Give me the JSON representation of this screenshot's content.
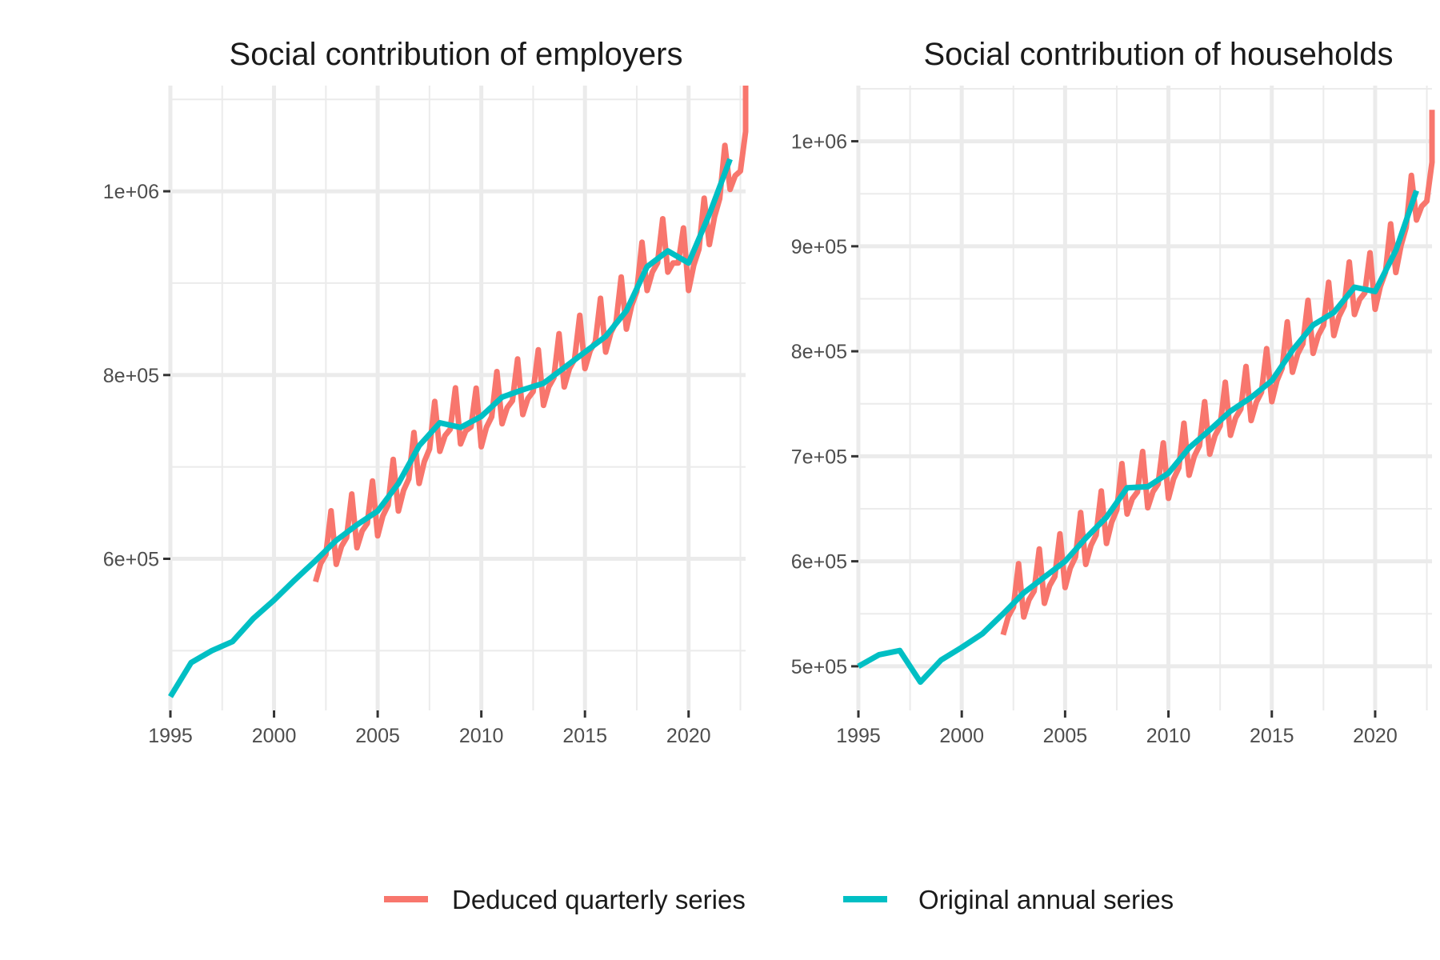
{
  "chart_data": [
    {
      "type": "line",
      "title": "Social contribution of employers",
      "xlabel": "",
      "ylabel": "",
      "xlim": [
        1995,
        2022.75
      ],
      "ylim": [
        435000,
        1115000
      ],
      "x_ticks": [
        1995,
        2000,
        2005,
        2010,
        2015,
        2020
      ],
      "x_tick_labels": [
        "1995",
        "2000",
        "2005",
        "2010",
        "2015",
        "2020"
      ],
      "y_ticks": [
        600000,
        800000,
        1000000
      ],
      "y_tick_labels": [
        "6e+05",
        "8e+05",
        "1e+06"
      ],
      "y_minor_ticks": [
        500000,
        700000,
        900000,
        1100000
      ],
      "grid": true,
      "series": [
        {
          "name": "Deduced quarterly series",
          "color": "#F8766D",
          "annual_base": {
            "x": [
              2002,
              2003,
              2004,
              2005,
              2006,
              2007,
              2008,
              2009,
              2010,
              2011,
              2012,
              2013,
              2014,
              2015,
              2016,
              2017,
              2018,
              2019,
              2020,
              2021,
              2022
            ],
            "values": [
              598000,
              617000,
              635000,
              648000,
              675000,
              705000,
              740000,
              748000,
              745000,
              770000,
              780000,
              790000,
              810000,
              830000,
              848000,
              873000,
              915000,
              935000,
              915000,
              965000,
              1025000
            ]
          },
          "quarter_offsets": [
            -23000,
            -8000,
            -3000,
            40000
          ],
          "extra_points": [
            [
              2022.75,
              1115000
            ]
          ]
        },
        {
          "name": "Original annual series",
          "color": "#00BFC4",
          "x": [
            1995,
            1996,
            1997,
            1998,
            1999,
            2000,
            2001,
            2002,
            2003,
            2004,
            2005,
            2006,
            2007,
            2008,
            2009,
            2010,
            2011,
            2012,
            2013,
            2014,
            2015,
            2016,
            2017,
            2018,
            2019,
            2020,
            2021,
            2022
          ],
          "values": [
            450000,
            487000,
            500000,
            510000,
            535000,
            555000,
            577000,
            598000,
            620000,
            637000,
            652000,
            682000,
            723000,
            748000,
            743000,
            755000,
            776000,
            784000,
            791000,
            808000,
            825000,
            842000,
            870000,
            918000,
            935000,
            922000,
            975000,
            1035000
          ]
        }
      ]
    },
    {
      "type": "line",
      "title": "Social contribution of households",
      "xlabel": "",
      "ylabel": "",
      "xlim": [
        1995,
        2022.75
      ],
      "ylim": [
        458000,
        1053000
      ],
      "x_ticks": [
        1995,
        2000,
        2005,
        2010,
        2015,
        2020
      ],
      "x_tick_labels": [
        "1995",
        "2000",
        "2005",
        "2010",
        "2015",
        "2020"
      ],
      "y_ticks": [
        500000,
        600000,
        700000,
        800000,
        900000,
        1000000
      ],
      "y_tick_labels": [
        "5e+05",
        "6e+05",
        "7e+05",
        "8e+05",
        "9e+05",
        "1e+06"
      ],
      "y_minor_ticks": [
        550000,
        650000,
        750000,
        850000,
        950000,
        1050000
      ],
      "grid": true,
      "series": [
        {
          "name": "Deduced quarterly series",
          "color": "#F8766D",
          "annual_base": {
            "x": [
              2002,
              2003,
              2004,
              2005,
              2006,
              2007,
              2008,
              2009,
              2010,
              2011,
              2012,
              2013,
              2014,
              2015,
              2016,
              2017,
              2018,
              2019,
              2020,
              2021,
              2022
            ],
            "values": [
              550000,
              567000,
              580000,
              595000,
              617000,
              637000,
              665000,
              671000,
              680000,
              702000,
              722000,
              740000,
              754000,
              772000,
              800000,
              818000,
              835000,
              855000,
              860000,
              895000,
              945000
            ]
          },
          "quarter_offsets": [
            -20000,
            -7000,
            -2000,
            35000
          ],
          "extra_points": [
            [
              2022.75,
              1030000
            ]
          ]
        },
        {
          "name": "Original annual series",
          "color": "#00BFC4",
          "x": [
            1995,
            1996,
            1997,
            1998,
            1999,
            2000,
            2001,
            2002,
            2003,
            2004,
            2005,
            2006,
            2007,
            2008,
            2009,
            2010,
            2011,
            2012,
            2013,
            2014,
            2015,
            2016,
            2017,
            2018,
            2019,
            2020,
            2021,
            2022
          ],
          "values": [
            500000,
            511000,
            515000,
            485000,
            506000,
            518000,
            531000,
            550000,
            570000,
            585000,
            600000,
            622000,
            642000,
            670000,
            671000,
            684000,
            708000,
            725000,
            743000,
            756000,
            772000,
            801000,
            825000,
            837000,
            861000,
            857000,
            896000,
            953000
          ]
        }
      ]
    }
  ],
  "legend": {
    "position": "bottom",
    "items": [
      {
        "label": "Deduced quarterly series",
        "color": "#F8766D"
      },
      {
        "label": "Original annual series",
        "color": "#00BFC4"
      }
    ]
  }
}
